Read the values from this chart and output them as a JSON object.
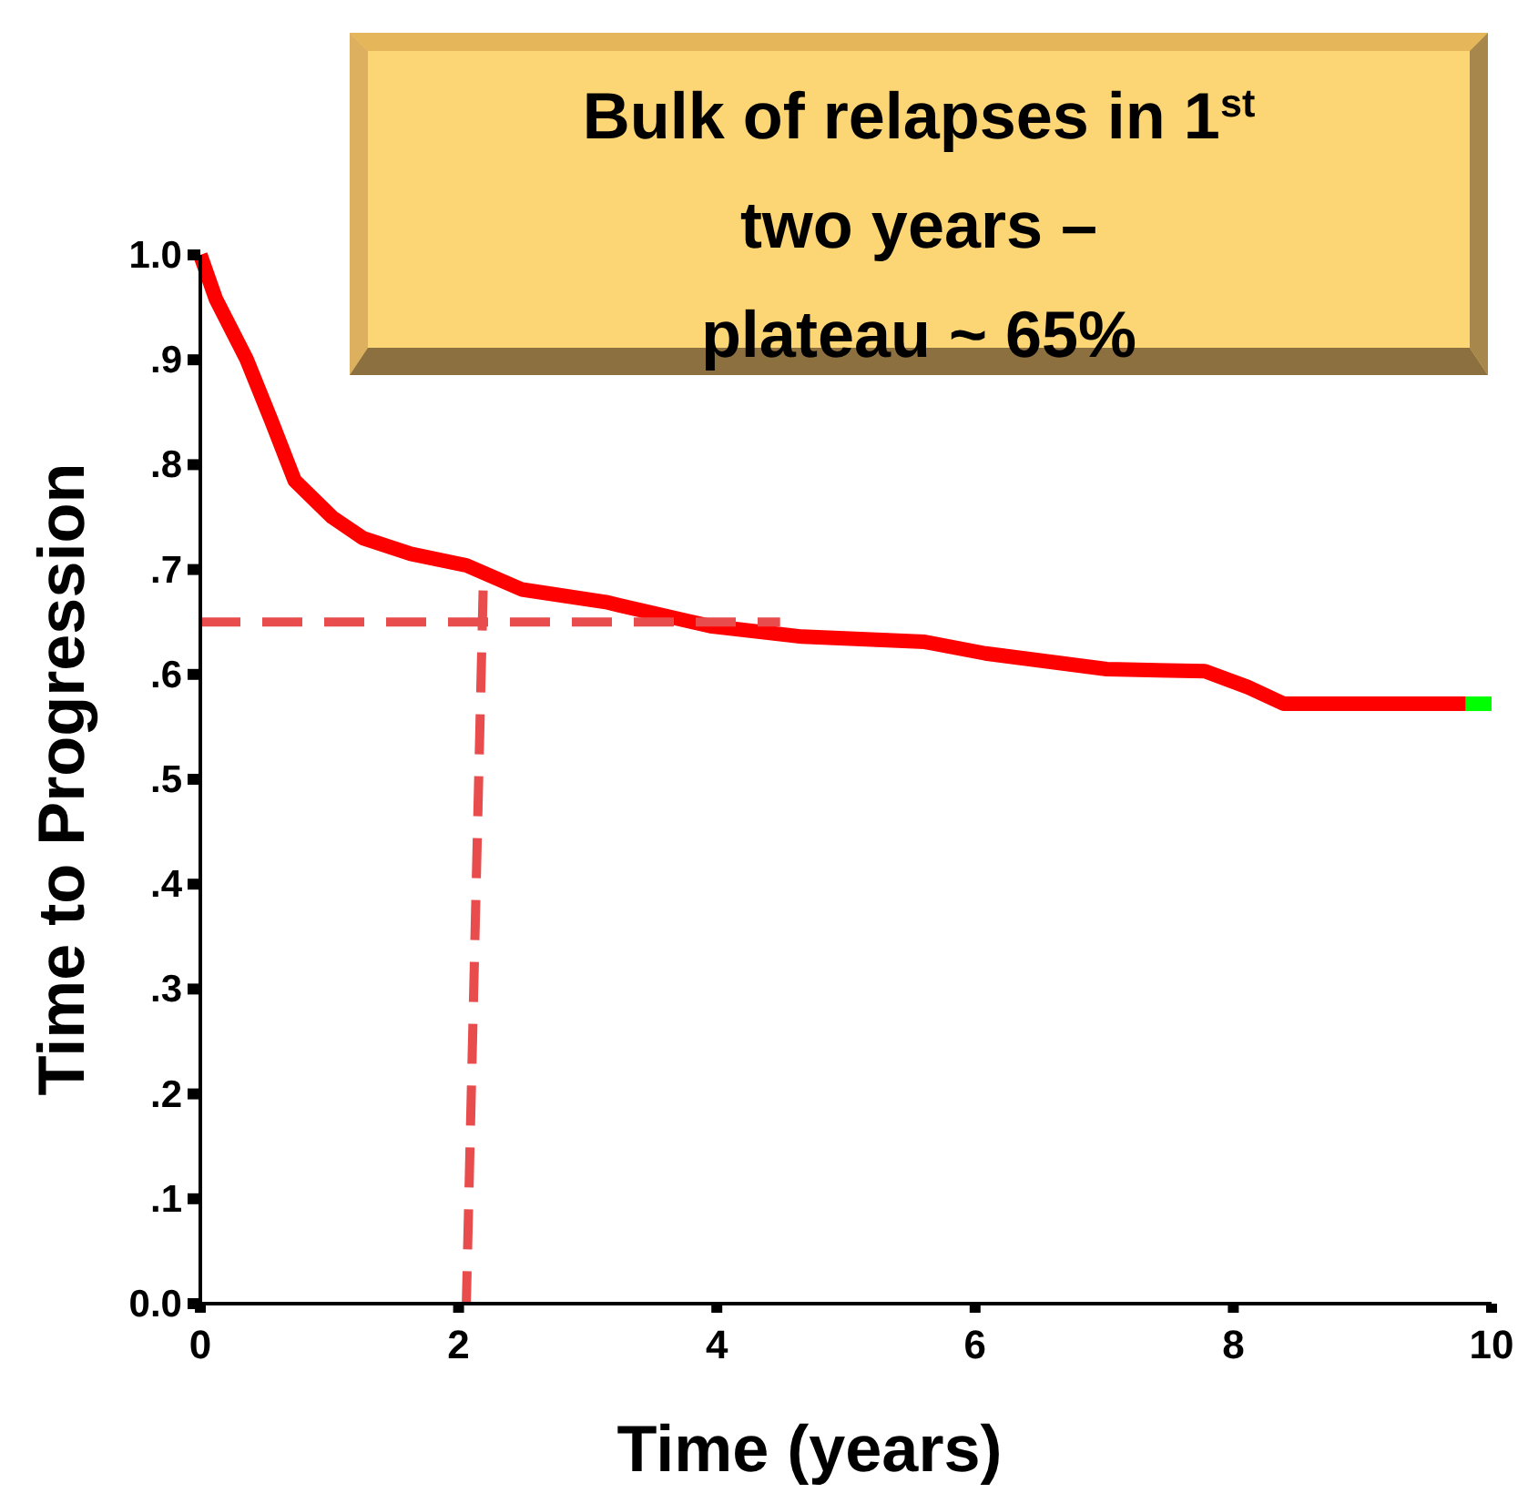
{
  "chart_data": {
    "type": "line",
    "xlabel": "Time (years)",
    "ylabel": "Time to Progression",
    "annotations": [
      "Bulk of relapses in 1$^{st}$\ntwo years –\nplateau ~ 65%"
    ],
    "xlim": [
      0,
      10
    ],
    "xticks": [
      0,
      2,
      4,
      6,
      8,
      10
    ],
    "ylim": [
      0,
      1
    ],
    "yticks": [
      {
        "value": 0,
        "label": "0.0"
      },
      {
        "value": 0.1,
        "label": ".1"
      },
      {
        "value": 0.2,
        "label": ".2"
      },
      {
        "value": 0.3,
        "label": ".3"
      },
      {
        "value": 0.4,
        "label": ".4"
      },
      {
        "value": 0.5,
        "label": ".5"
      },
      {
        "value": 0.6,
        "label": ".6"
      },
      {
        "value": 0.7,
        "label": ".7"
      },
      {
        "value": 0.8,
        "label": ".8"
      },
      {
        "value": 0.9,
        "label": ".9"
      },
      {
        "value": 1,
        "label": "1.0"
      }
    ],
    "grid": false,
    "marker": "none",
    "line_style": "solid",
    "series": [
      {
        "type": "line",
        "color": "#00ff00",
        "x": [
          9.8,
          10
        ],
        "values": [
          0.572,
          0.572
        ]
      },
      {
        "color": "#ff0000",
        "x": [
          0,
          0.12,
          0.36,
          0.55,
          0.73,
          1.02,
          1.26,
          1.63,
          2.06,
          2.49,
          3.14,
          3.24,
          3.95,
          4.66,
          5.61,
          6.08,
          7.02,
          7.78,
          8.11,
          8.39,
          9.8
        ],
        "values": [
          1,
          0.958,
          0.9,
          0.842,
          0.785,
          0.75,
          0.73,
          0.715,
          0.704,
          0.681,
          0.669,
          0.666,
          0.646,
          0.636,
          0.631,
          0.62,
          0.605,
          0.603,
          0.588,
          0.572,
          0.572
        ]
      },
      {
        "type": "line",
        "color": "#e84c4c",
        "line_style": "dashed",
        "x": [
          0,
          4.49
        ],
        "values": [
          0.65,
          0.65
        ]
      },
      {
        "type": "line",
        "color": "#e84c4c",
        "line_style": "dashed",
        "x": [
          2.19,
          2.06
        ],
        "values": [
          0.68,
          0
        ]
      }
    ]
  }
}
